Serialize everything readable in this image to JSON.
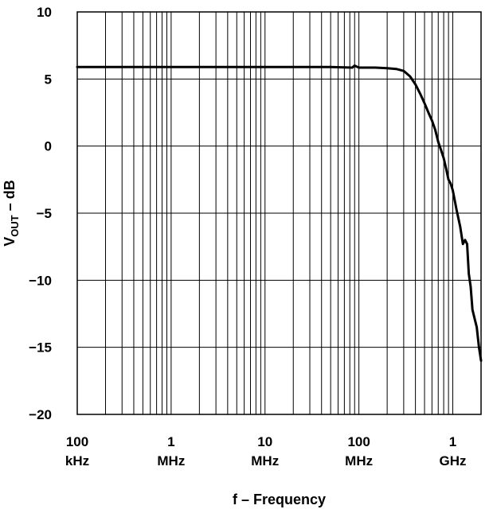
{
  "chart_data": {
    "type": "line",
    "title": "",
    "xlabel": "f – Frequency",
    "ylabel_main": "V",
    "ylabel_sub": "OUT",
    "ylabel_rest": " – dB",
    "x_scale": "log",
    "xlim_hz": [
      100000,
      2000000000
    ],
    "ylim": [
      -20,
      10
    ],
    "grid": true,
    "y_ticks": [
      {
        "value": 10,
        "label": "10"
      },
      {
        "value": 5,
        "label": "5"
      },
      {
        "value": 0,
        "label": "0"
      },
      {
        "value": -5,
        "label": "−5"
      },
      {
        "value": -10,
        "label": "−10"
      },
      {
        "value": -15,
        "label": "−15"
      },
      {
        "value": -20,
        "label": "−20"
      }
    ],
    "x_ticks": [
      {
        "value_hz": 100000,
        "line1": "100",
        "line2": "kHz"
      },
      {
        "value_hz": 1000000,
        "line1": "1",
        "line2": "MHz"
      },
      {
        "value_hz": 10000000,
        "line1": "10",
        "line2": "MHz"
      },
      {
        "value_hz": 100000000,
        "line1": "100",
        "line2": "MHz"
      },
      {
        "value_hz": 1000000000,
        "line1": "1",
        "line2": "GHz"
      }
    ],
    "series": [
      {
        "color": "#000000",
        "points": [
          [
            100000,
            5.9
          ],
          [
            1000000,
            5.9
          ],
          [
            10000000,
            5.9
          ],
          [
            50000000,
            5.9
          ],
          [
            85000000,
            5.85
          ],
          [
            90000000,
            6.0
          ],
          [
            100000000,
            5.85
          ],
          [
            150000000,
            5.85
          ],
          [
            200000000,
            5.8
          ],
          [
            250000000,
            5.75
          ],
          [
            300000000,
            5.6
          ],
          [
            350000000,
            5.2
          ],
          [
            400000000,
            4.6
          ],
          [
            450000000,
            3.9
          ],
          [
            500000000,
            3.2
          ],
          [
            550000000,
            2.5
          ],
          [
            600000000,
            1.9
          ],
          [
            650000000,
            1.2
          ],
          [
            700000000,
            0.3
          ],
          [
            750000000,
            -0.3
          ],
          [
            800000000,
            -0.9
          ],
          [
            850000000,
            -1.7
          ],
          [
            900000000,
            -2.5
          ],
          [
            950000000,
            -2.8
          ],
          [
            1000000000,
            -3.3
          ],
          [
            1100000000,
            -4.8
          ],
          [
            1200000000,
            -6.0
          ],
          [
            1280000000,
            -7.3
          ],
          [
            1350000000,
            -7.0
          ],
          [
            1420000000,
            -7.3
          ],
          [
            1480000000,
            -9.5
          ],
          [
            1550000000,
            -10.5
          ],
          [
            1620000000,
            -12.2
          ],
          [
            1700000000,
            -12.8
          ],
          [
            1800000000,
            -13.5
          ],
          [
            1900000000,
            -15.0
          ],
          [
            2000000000,
            -16.0
          ]
        ]
      }
    ]
  }
}
